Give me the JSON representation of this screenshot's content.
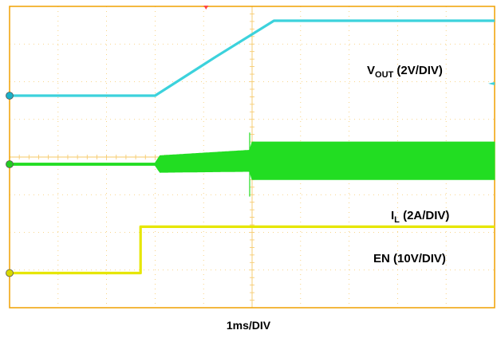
{
  "chart_data": {
    "type": "line",
    "xlabel": "1ms/DIV",
    "divisions": {
      "x": 10,
      "y": 8
    },
    "x_unit": "div",
    "xlim": [
      0,
      10
    ],
    "ylim": [
      0,
      8
    ],
    "grid": true,
    "colors": {
      "frame": "#f0a000",
      "grid": "#f6c866",
      "trigger": "#ff4444"
    },
    "series": [
      {
        "key": "vout",
        "name": "V",
        "name_sub": "OUT",
        "name_suffix": " (2V/DIV)",
        "color": "#3cd2dc",
        "marker_color": "#1ab0c8",
        "points": [
          [
            0,
            5.63
          ],
          [
            3.0,
            5.63
          ],
          [
            4.25,
            6.66
          ],
          [
            5.45,
            7.62
          ],
          [
            10,
            7.62
          ]
        ]
      },
      {
        "key": "il",
        "name": "I",
        "name_sub": "L",
        "name_suffix": " (2A/DIV)",
        "color": "#22dd22",
        "marker_color": "#22cc22",
        "points": [
          [
            0,
            3.81
          ],
          [
            3.0,
            3.81
          ],
          [
            4.95,
            3.9
          ],
          [
            10,
            3.9
          ]
        ],
        "ripple": [
          [
            0,
            0.03
          ],
          [
            3.0,
            0.03
          ],
          [
            3.1,
            0.22
          ],
          [
            4.95,
            0.28
          ],
          [
            5.0,
            0.5
          ],
          [
            10,
            0.5
          ]
        ]
      },
      {
        "key": "en",
        "name": "EN",
        "name_sub": "",
        "name_suffix": " (10V/DIV)",
        "color": "#e6e600",
        "marker_color": "#d8d800",
        "points": [
          [
            0,
            0.92
          ],
          [
            2.7,
            0.92
          ],
          [
            2.7,
            2.15
          ],
          [
            10,
            2.15
          ]
        ]
      }
    ]
  }
}
